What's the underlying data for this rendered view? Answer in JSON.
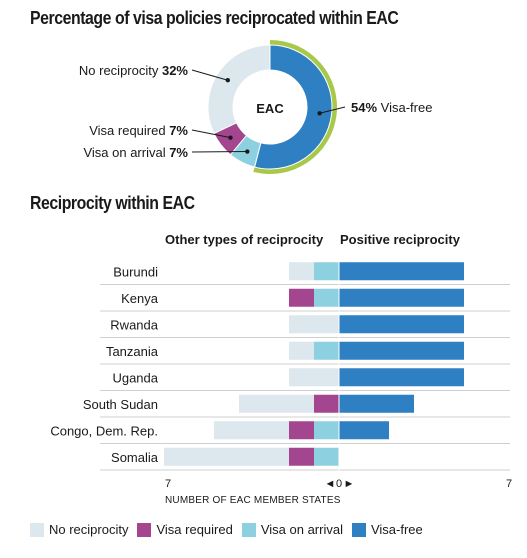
{
  "colors": {
    "no_reciprocity": "#dde7ee",
    "visa_required": "#a4458f",
    "visa_on_arrival": "#8dd0e0",
    "visa_free": "#2f7fc3",
    "ring_accent": "#a8c84a"
  },
  "chart_data": [
    {
      "type": "pie",
      "title": "Percentage of visa policies reciprocated within EAC",
      "center_label": "EAC",
      "slices": [
        {
          "category": "Visa-free",
          "value": 54,
          "value_label": "54%",
          "label": "Visa-free",
          "color_key": "visa_free"
        },
        {
          "category": "Visa on arrival",
          "value": 7,
          "value_label": "7%",
          "label": "Visa on arrival",
          "color_key": "visa_on_arrival"
        },
        {
          "category": "Visa required",
          "value": 7,
          "value_label": "7%",
          "label": "Visa required",
          "color_key": "visa_required"
        },
        {
          "category": "No reciprocity",
          "value": 32,
          "value_label": "32%",
          "label": "No reciprocity",
          "color_key": "no_reciprocity"
        }
      ]
    },
    {
      "type": "bar",
      "title": "Reciprocity within EAC",
      "left_header": "Other types of reciprocity",
      "right_header": "Positive reciprocity",
      "xlabel": "NUMBER OF EAC MEMBER STATES",
      "xlim": [
        -7,
        7
      ],
      "ticks": [
        "7",
        "0",
        "7"
      ],
      "categories": [
        "Burundi",
        "Kenya",
        "Rwanda",
        "Tanzania",
        "Uganda",
        "South Sudan",
        "Congo, Dem. Rep.",
        "Somalia"
      ],
      "series": [
        {
          "name": "No reciprocity",
          "color_key": "no_reciprocity",
          "side": "left",
          "values": [
            1,
            0,
            2,
            1,
            2,
            3,
            3,
            5
          ]
        },
        {
          "name": "Visa required",
          "color_key": "visa_required",
          "side": "left",
          "values": [
            0,
            1,
            0,
            0,
            0,
            1,
            1,
            1
          ]
        },
        {
          "name": "Visa on arrival",
          "color_key": "visa_on_arrival",
          "side": "left",
          "values": [
            1,
            1,
            0,
            1,
            0,
            0,
            1,
            1
          ]
        },
        {
          "name": "Visa-free",
          "color_key": "visa_free",
          "side": "right",
          "values": [
            5,
            5,
            5,
            5,
            5,
            3,
            2,
            0
          ]
        }
      ]
    }
  ],
  "legend": [
    {
      "label": "No reciprocity",
      "color_key": "no_reciprocity"
    },
    {
      "label": "Visa required",
      "color_key": "visa_required"
    },
    {
      "label": "Visa on arrival",
      "color_key": "visa_on_arrival"
    },
    {
      "label": "Visa-free",
      "color_key": "visa_free"
    }
  ]
}
